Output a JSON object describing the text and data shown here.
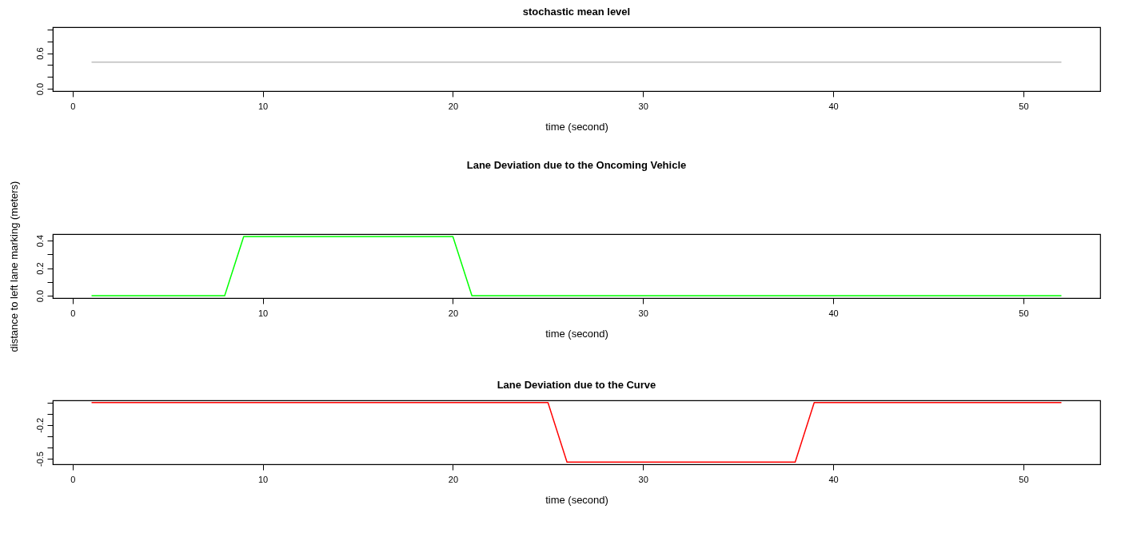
{
  "chart_data": [
    {
      "type": "line",
      "title": "stochastic mean level",
      "xlabel": "time (second)",
      "x": [
        1,
        52
      ],
      "series": [
        {
          "color": "#bebebe",
          "values": [
            0.45,
            0.45
          ]
        }
      ],
      "xlim": [
        -1.04,
        54.04
      ],
      "ylim": [
        -0.04,
        1.04
      ],
      "xticks": [
        0,
        10,
        20,
        30,
        40,
        50
      ],
      "yticks": [
        {
          "value": 0,
          "label": "0.0"
        },
        {
          "value": 0.2,
          "label": null
        },
        {
          "value": 0.4,
          "label": null
        },
        0.6,
        {
          "value": 0.8,
          "label": null
        },
        {
          "value": 1.0,
          "label": null
        }
      ],
      "grid": false,
      "line_style": "solid"
    },
    {
      "type": "line",
      "title": "Lane Deviation due to the Oncoming Vehicle",
      "xlabel": "time (second)",
      "ylabel": "distance to left lane marking (meters)",
      "x": [
        1,
        8,
        9,
        20,
        21,
        52
      ],
      "series": [
        {
          "color": "#00ff00",
          "values": [
            0,
            0,
            0.43,
            0.43,
            0,
            0
          ]
        }
      ],
      "xlim": [
        -1.04,
        54.04
      ],
      "ylim": [
        -0.017,
        0.447
      ],
      "xticks": [
        0,
        10,
        20,
        30,
        40,
        50
      ],
      "yticks": [
        {
          "value": 0,
          "label": "0.0"
        },
        {
          "value": 0.1,
          "label": null
        },
        0.2,
        {
          "value": 0.3,
          "label": null
        },
        0.4
      ],
      "grid": false,
      "line_style": "solid"
    },
    {
      "type": "line",
      "title": "Lane Deviation due to the Curve",
      "xlabel": "time (second)",
      "x": [
        1,
        25,
        26,
        38,
        39,
        52
      ],
      "series": [
        {
          "color": "#ff0000",
          "values": [
            0,
            0,
            -0.53,
            -0.53,
            0,
            0
          ]
        }
      ],
      "xlim": [
        -1.04,
        54.04
      ],
      "ylim": [
        -0.55,
        0.02
      ],
      "xticks": [
        0,
        10,
        20,
        30,
        40,
        50
      ],
      "yticks": [
        -0.5,
        {
          "value": -0.4,
          "label": null
        },
        {
          "value": -0.3,
          "label": null
        },
        -0.2,
        {
          "value": -0.1,
          "label": null
        },
        {
          "value": 0.0,
          "label": null
        }
      ],
      "grid": false,
      "line_style": "solid"
    }
  ]
}
